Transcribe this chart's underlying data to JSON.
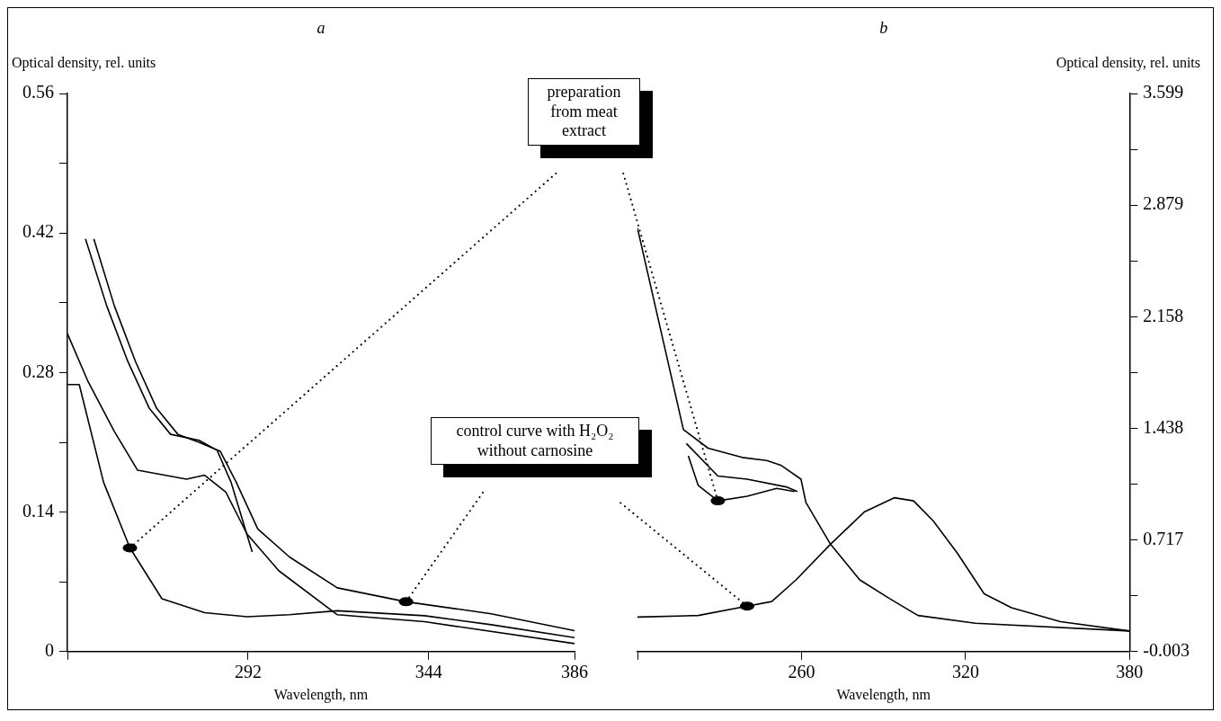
{
  "chart_data": [
    {
      "type": "line",
      "title": "a",
      "xlabel": "Wavelength, nm",
      "ylabel": "Optical density, rel. units",
      "xlim": [
        240,
        386
      ],
      "xticks": [
        {
          "value": 240,
          "label": null
        },
        292,
        344,
        386
      ],
      "ylim": [
        0,
        0.56
      ],
      "yticks": [
        0,
        {
          "value": 0.07,
          "label": null
        },
        0.14,
        {
          "value": 0.21,
          "label": null
        },
        0.28,
        {
          "value": 0.35,
          "label": null
        },
        0.42,
        {
          "value": 0.49,
          "label": null
        },
        0.56
      ],
      "grid": false,
      "legend": false,
      "annotations": [
        "control curve with H₂O₂ without carnosine",
        "preparation from meat extract"
      ],
      "series": [
        {
          "color": "#000000",
          "x": [
            247.6,
            253.5,
            259.6,
            265.7,
            271.8,
            277.9,
            284,
            288.6,
            294.8,
            303.9,
            317.7,
            337.5,
            362,
            386
          ],
          "values": [
            0.414,
            0.347,
            0.291,
            0.244,
            0.218,
            0.21,
            0.201,
            0.17,
            0.123,
            0.095,
            0.064,
            0.05,
            0.038,
            0.021
          ]
        },
        {
          "color": "#000000",
          "x": [
            245.2,
            251.3,
            257.4,
            263.6,
            269.7,
            277.9,
            283.1,
            287.1,
            293.2
          ],
          "values": [
            0.414,
            0.347,
            0.291,
            0.244,
            0.218,
            0.212,
            0.202,
            0.17,
            0.1
          ]
        },
        {
          "color": "#000000",
          "x": [
            240,
            245.8,
            253.5,
            260.2,
            274.3,
            279.5,
            285.6,
            291.7,
            300.9,
            317.7,
            342.8,
            386
          ],
          "values": [
            0.319,
            0.272,
            0.221,
            0.182,
            0.173,
            0.177,
            0.16,
            0.118,
            0.081,
            0.037,
            0.03,
            0.008
          ]
        },
        {
          "color": "#000000",
          "x": [
            240,
            243.4,
            250.4,
            258,
            267.2,
            279.5,
            291.7,
            303.9,
            317.7,
            342.8,
            362,
            386
          ],
          "values": [
            0.268,
            0.268,
            0.17,
            0.104,
            0.053,
            0.039,
            0.035,
            0.037,
            0.041,
            0.036,
            0.027,
            0.014
          ]
        }
      ]
    },
    {
      "type": "line",
      "title": "b",
      "xlabel": "Wavelength, nm",
      "y2label": "Optical density, rel. units",
      "xlim": [
        200,
        380
      ],
      "xticks": [
        {
          "value": 200,
          "label": null
        },
        260,
        320,
        380
      ],
      "y2lim": [
        -0.003,
        3.599
      ],
      "y2ticks": [
        -0.003,
        {
          "value": 0.357,
          "label": null
        },
        0.717,
        {
          "value": 1.078,
          "label": null
        },
        1.438,
        {
          "value": 1.798,
          "label": null
        },
        2.158,
        {
          "value": 2.519,
          "label": null
        },
        2.879,
        {
          "value": 3.239,
          "label": null
        },
        3.599
      ],
      "grid": false,
      "legend": false,
      "series": [
        {
          "color": "#000000",
          "axis": "y2",
          "x": [
            200,
            216.8,
            225.8,
            238.3,
            247.3,
            252.4,
            259.8,
            261.6,
            270.6,
            281.3,
            292.1,
            302.6,
            323.6,
            380
          ],
          "values": [
            2.73,
            1.43,
            1.31,
            1.25,
            1.23,
            1.2,
            1.11,
            0.96,
            0.69,
            0.46,
            0.34,
            0.23,
            0.18,
            0.13
          ]
        },
        {
          "color": "#000000",
          "axis": "y2",
          "x": [
            217.9,
            229.4,
            240.1,
            254.4,
            258.5
          ],
          "values": [
            1.34,
            1.13,
            1.11,
            1.06,
            1.03
          ]
        },
        {
          "color": "#000000",
          "axis": "y2",
          "x": [
            218.6,
            222.2,
            229.4,
            240.1,
            250.9,
            257.5
          ],
          "values": [
            1.26,
            1.07,
            0.97,
            1.0,
            1.05,
            1.03
          ]
        },
        {
          "color": "#000000",
          "axis": "y2",
          "x": [
            200,
            222.2,
            240.1,
            249.1,
            258,
            270.6,
            283.1,
            293.9,
            301,
            308.2,
            317.1,
            326.8,
            336.8,
            354.7,
            380
          ],
          "values": [
            0.22,
            0.23,
            0.29,
            0.32,
            0.46,
            0.69,
            0.9,
            0.99,
            0.97,
            0.84,
            0.63,
            0.37,
            0.28,
            0.19,
            0.13
          ]
        }
      ]
    }
  ]
}
